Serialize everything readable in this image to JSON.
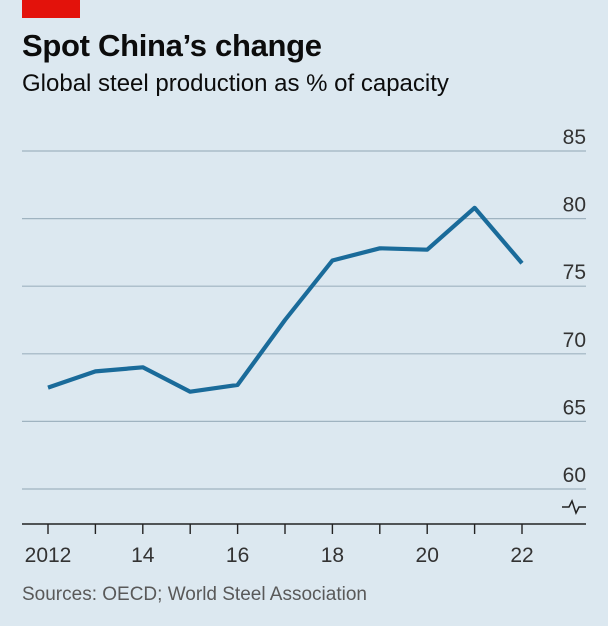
{
  "header": {
    "title": "Spot China’s change",
    "subtitle": "Global steel production as % of capacity"
  },
  "footer": {
    "source": "Sources: OECD; World Steel Association"
  },
  "colors": {
    "accent_tag": "#e3120b",
    "line": "#1a6b9a",
    "background": "#dce8f0",
    "grid": "#9fb3c0"
  },
  "chart_data": {
    "type": "line",
    "title": "Spot China’s change",
    "subtitle": "Global steel production as % of capacity",
    "xlabel": "",
    "ylabel": "",
    "x": [
      2012,
      2013,
      2014,
      2015,
      2016,
      2017,
      2018,
      2019,
      2020,
      2021,
      2022
    ],
    "series": [
      {
        "values": [
          67.5,
          68.7,
          69.0,
          67.2,
          67.7,
          72.5,
          76.9,
          77.8,
          77.7,
          80.8,
          76.7
        ]
      }
    ],
    "xlim": [
      2012,
      2022
    ],
    "ylim": [
      60,
      85
    ],
    "y_ticks": [
      "85",
      "80",
      "75",
      "70",
      "65",
      "60"
    ],
    "y_tick_values": [
      85,
      80,
      75,
      70,
      65,
      60
    ],
    "x_tick_labels": [
      "2012",
      "14",
      "16",
      "18",
      "20",
      "22"
    ],
    "x_tick_values": [
      2012,
      2014,
      2016,
      2018,
      2020,
      2022
    ],
    "y_axis_break": true,
    "grid": "horizontal",
    "y_axis_side": "right",
    "legend": "none"
  }
}
